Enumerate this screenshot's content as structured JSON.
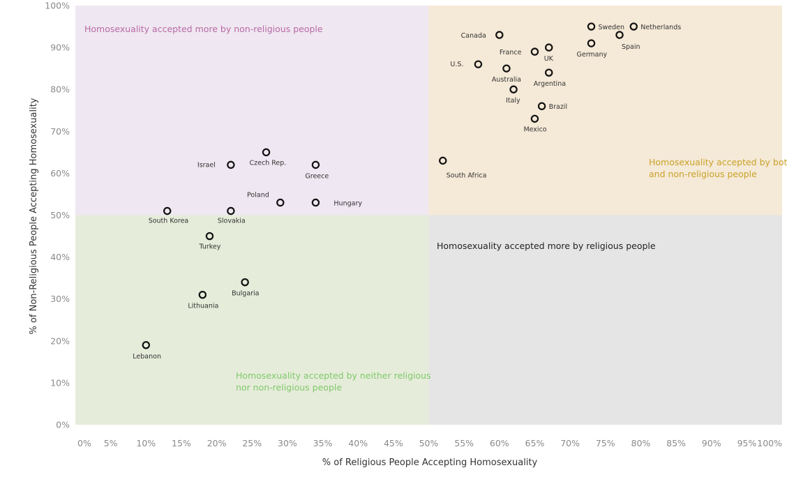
{
  "chart_data": {
    "type": "scatter",
    "xlabel": "% of Religious People Accepting Homosexuality",
    "ylabel": "% of Non-Religious People Accepting Homosexuality",
    "xlim": [
      0,
      100
    ],
    "ylim": [
      0,
      100
    ],
    "x_ticks": [
      "0%",
      "5%",
      "10%",
      "15%",
      "20%",
      "25%",
      "30%",
      "35%",
      "40%",
      "45%",
      "50%",
      "55%",
      "60%",
      "65%",
      "70%",
      "75%",
      "80%",
      "85%",
      "90%",
      "95%",
      "100%"
    ],
    "y_ticks": [
      "0%",
      "10%",
      "20%",
      "30%",
      "40%",
      "50%",
      "60%",
      "70%",
      "80%",
      "90%",
      "100%"
    ],
    "grid": false,
    "quadrant_split": {
      "x": 50,
      "y": 50
    },
    "quadrants": [
      {
        "id": "top-left",
        "label": "Homosexuality accepted more by non-religious people",
        "fill": "#efe7f1",
        "text_color": "#b86aa5"
      },
      {
        "id": "top-right",
        "label": "Homosexuality accepted by both religious and non-religious people",
        "fill": "#f5e9d7",
        "text_color": "#c9a227"
      },
      {
        "id": "bottom-left",
        "label": "Homosexuality accepted by neither religious nor non-religious people",
        "fill": "#e6ecda",
        "text_color": "#7fc96b"
      },
      {
        "id": "bottom-right",
        "label": "Homosexuality accepted more by religious people",
        "fill": "#e5e5e5",
        "text_color": "#222222"
      }
    ],
    "points": [
      {
        "country": "Netherlands",
        "x": 79,
        "y": 95
      },
      {
        "country": "Sweden",
        "x": 73,
        "y": 95
      },
      {
        "country": "Spain",
        "x": 77,
        "y": 93
      },
      {
        "country": "Canada",
        "x": 60,
        "y": 93
      },
      {
        "country": "Germany",
        "x": 73,
        "y": 91
      },
      {
        "country": "UK",
        "x": 67,
        "y": 90
      },
      {
        "country": "France",
        "x": 65,
        "y": 89
      },
      {
        "country": "U.S.",
        "x": 57,
        "y": 86
      },
      {
        "country": "Australia",
        "x": 61,
        "y": 85
      },
      {
        "country": "Argentina",
        "x": 67,
        "y": 84
      },
      {
        "country": "Italy",
        "x": 62,
        "y": 80
      },
      {
        "country": "Brazil",
        "x": 66,
        "y": 76
      },
      {
        "country": "Mexico",
        "x": 65,
        "y": 73
      },
      {
        "country": "South Africa",
        "x": 52,
        "y": 63
      },
      {
        "country": "Czech Rep.",
        "x": 27,
        "y": 65
      },
      {
        "country": "Israel",
        "x": 22,
        "y": 62
      },
      {
        "country": "Greece",
        "x": 34,
        "y": 62
      },
      {
        "country": "Poland",
        "x": 29,
        "y": 53
      },
      {
        "country": "Hungary",
        "x": 34,
        "y": 53
      },
      {
        "country": "South Korea",
        "x": 13,
        "y": 51
      },
      {
        "country": "Slovakia",
        "x": 22,
        "y": 51
      },
      {
        "country": "Turkey",
        "x": 19,
        "y": 45
      },
      {
        "country": "Bulgaria",
        "x": 24,
        "y": 34
      },
      {
        "country": "Lithuania",
        "x": 18,
        "y": 31
      },
      {
        "country": "Lebanon",
        "x": 10,
        "y": 19
      }
    ]
  }
}
